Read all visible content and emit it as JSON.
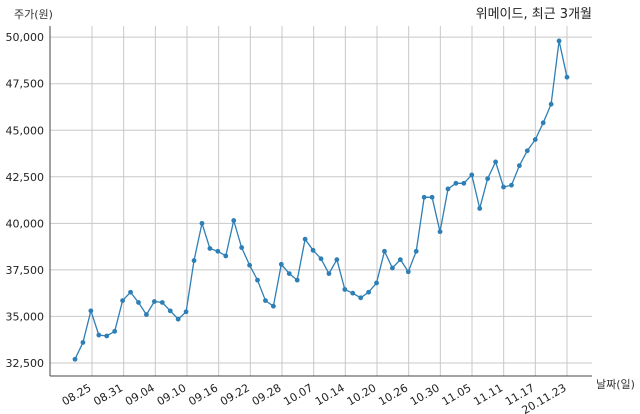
{
  "chart_data": {
    "type": "line",
    "title": "위메이드, 최근 3개월",
    "ylabel": "주가(원)",
    "xlabel": "날짜(일)",
    "ylim": [
      31800,
      50600
    ],
    "y_ticks": [
      32500,
      35000,
      37500,
      40000,
      42500,
      45000,
      47500,
      50000
    ],
    "y_tick_labels": [
      "32,500",
      "35,000",
      "37,500",
      "40,000",
      "42,500",
      "45,000",
      "47,500",
      "50,000"
    ],
    "x_tick_labels": [
      "08.25",
      "08.31",
      "09.04",
      "09.10",
      "09.16",
      "09.22",
      "09.28",
      "10.07",
      "10.14",
      "10.20",
      "10.26",
      "10.30",
      "11.05",
      "11.11",
      "11.17",
      "20.11.23"
    ],
    "grid": true,
    "line_color": "#2e7fb5",
    "values": [
      32700,
      33600,
      35300,
      34000,
      33950,
      34200,
      35850,
      36300,
      35750,
      35100,
      35800,
      35750,
      35300,
      34850,
      35250,
      38000,
      40000,
      38650,
      38500,
      38250,
      40150,
      38700,
      37750,
      36950,
      35850,
      35550,
      37800,
      37300,
      36950,
      39150,
      38550,
      38100,
      37300,
      38050,
      36450,
      36250,
      36000,
      36300,
      36800,
      38500,
      37600,
      38050,
      37400,
      38500,
      41400,
      41400,
      39550,
      41850,
      42150,
      42150,
      42600,
      40800,
      42400,
      43300,
      41950,
      42050,
      43100,
      43900,
      44500,
      45400,
      46400,
      49800,
      47850
    ]
  }
}
